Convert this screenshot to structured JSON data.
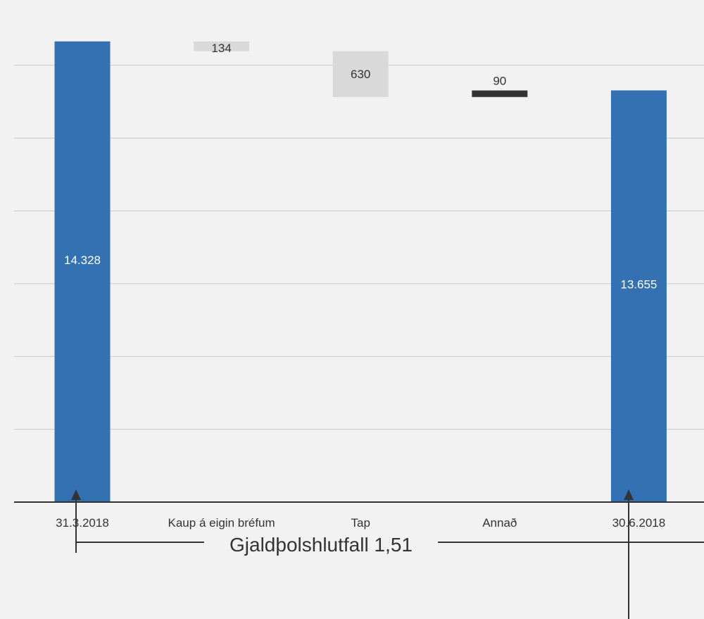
{
  "chart_data": {
    "type": "bar",
    "subtype": "waterfall",
    "categories": [
      "31.3.2018",
      "Kaup á eigin bréfum",
      "Tap",
      "Annað",
      "30.6.2018"
    ],
    "values": [
      14328,
      -134,
      -630,
      90,
      13655
    ],
    "value_labels": [
      "14.328",
      "134",
      "630",
      "90",
      "13.655"
    ],
    "bar_kinds": [
      "total",
      "decrease",
      "decrease",
      "increase",
      "total"
    ],
    "ylim": [
      8000,
      14800
    ],
    "gridlines_every": 1000,
    "grid": true,
    "legend": false,
    "annotation": "Gjaldþolshlutfall 1,51",
    "colors": {
      "total": "#3471b2",
      "decrease": "#d9d9d9",
      "increase": "#333333",
      "grid": "#c8c8c8",
      "axis": "#333333",
      "background": "#f2f2f2"
    }
  }
}
